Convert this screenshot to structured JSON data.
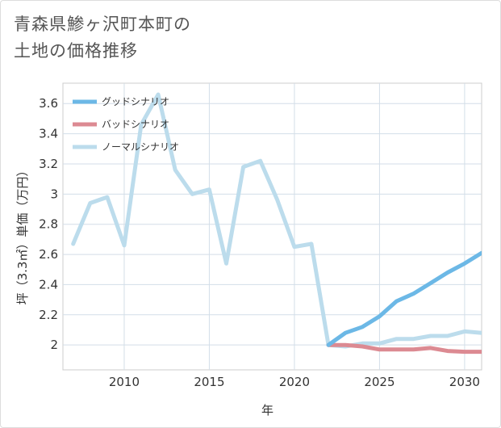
{
  "title_line1": "青森県鯵ヶ沢町本町の",
  "title_line2": "土地の価格推移",
  "chart_data": {
    "type": "line",
    "xlabel": "年",
    "ylabel": "坪（3.3㎡）単価（万円）",
    "xlim": [
      2006.4,
      2031
    ],
    "ylim": [
      1.835,
      3.735
    ],
    "x_ticks": [
      2010,
      2015,
      2020,
      2025,
      2030
    ],
    "x_tick_labels": [
      "2010",
      "2015",
      "2020",
      "2025",
      "2030"
    ],
    "y_ticks": [
      2,
      2.2,
      2.4,
      2.6,
      2.8,
      3,
      3.2,
      3.4,
      3.6
    ],
    "y_tick_labels": [
      "2",
      "2.2",
      "2.4",
      "2.6",
      "2.8",
      "3",
      "3.2",
      "3.4",
      "3.6"
    ],
    "grid": true,
    "legend_position": "top-left",
    "series": [
      {
        "name": "グッドシナリオ",
        "color": "#6cb8e6",
        "x": [
          2022,
          2023,
          2024,
          2025,
          2026,
          2027,
          2028,
          2029,
          2030,
          2031
        ],
        "values": [
          2.0,
          2.08,
          2.12,
          2.19,
          2.29,
          2.34,
          2.41,
          2.48,
          2.54,
          2.61
        ]
      },
      {
        "name": "バッドシナリオ",
        "color": "#dc8a92",
        "x": [
          2022,
          2023,
          2024,
          2025,
          2026,
          2027,
          2028,
          2029,
          2030,
          2031
        ],
        "values": [
          2.0,
          2.0,
          1.99,
          1.97,
          1.97,
          1.97,
          1.98,
          1.96,
          1.955,
          1.955
        ]
      },
      {
        "name": "ノーマルシナリオ",
        "color": "#bcdcec",
        "x": [
          2007,
          2008,
          2009,
          2010,
          2011,
          2012,
          2013,
          2014,
          2015,
          2016,
          2017,
          2018,
          2019,
          2020,
          2021,
          2022,
          2023,
          2024,
          2025,
          2026,
          2027,
          2028,
          2029,
          2030,
          2031
        ],
        "values": [
          2.67,
          2.94,
          2.98,
          2.66,
          3.46,
          3.66,
          3.16,
          3.0,
          3.03,
          2.54,
          3.18,
          3.22,
          2.96,
          2.65,
          2.67,
          2.0,
          1.99,
          2.01,
          2.01,
          2.04,
          2.04,
          2.06,
          2.06,
          2.09,
          2.08
        ]
      }
    ]
  }
}
